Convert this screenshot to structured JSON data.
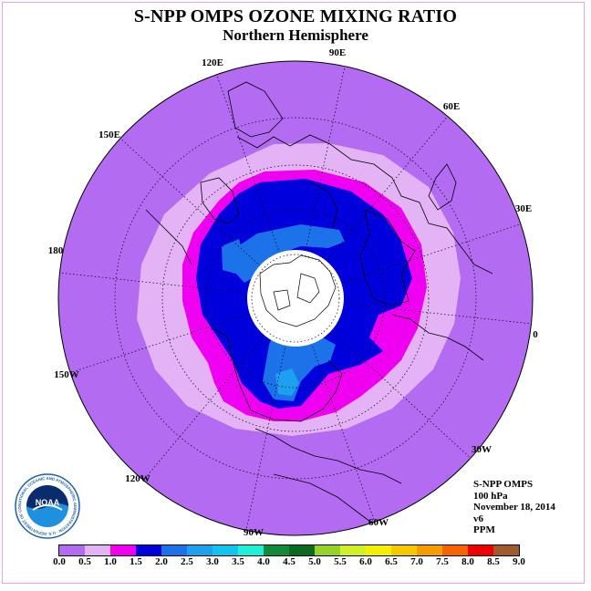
{
  "header": {
    "title": "S-NPP OMPS OZONE MIXING RATIO",
    "subtitle": "Northern Hemisphere"
  },
  "map": {
    "projection": "polar stereographic, north pole",
    "longitude_labels": [
      "90E",
      "60E",
      "30E",
      "0",
      "30W",
      "60W",
      "90W",
      "120W",
      "150W",
      "180",
      "150E",
      "120E"
    ],
    "bands_ppm_from_equator": [
      "0.0-0.5",
      "0.5-1.0",
      "1.0-1.5",
      "1.5-2.0",
      "2.0-2.5"
    ],
    "polar_night_no_data": true
  },
  "info": {
    "instrument": "S-NPP OMPS",
    "level": "100 hPa",
    "date": "November 18, 2014",
    "version": "v6",
    "units": "PPM"
  },
  "logo": {
    "name": "NOAA",
    "ring_text": "NATIONAL OCEANIC AND ATMOSPHERIC ADMINISTRATION · U.S. DEPARTMENT OF COMMERCE"
  },
  "colorbar": {
    "colors": [
      "#b36bf2",
      "#e3b3f5",
      "#f000f0",
      "#0000dd",
      "#1c72e8",
      "#1ea0f0",
      "#14c2f0",
      "#20f0d8",
      "#118a3a",
      "#0a6a20",
      "#96d228",
      "#d2f028",
      "#f5f000",
      "#f5c800",
      "#f59c00",
      "#f56400",
      "#ee0000",
      "#a05a2c"
    ],
    "ticks": [
      "0.0",
      "0.5",
      "1.0",
      "1.5",
      "2.0",
      "2.5",
      "3.0",
      "3.5",
      "4.0",
      "4.5",
      "5.0",
      "5.5",
      "6.0",
      "6.5",
      "7.0",
      "7.5",
      "8.0",
      "8.5",
      "9.0"
    ]
  }
}
